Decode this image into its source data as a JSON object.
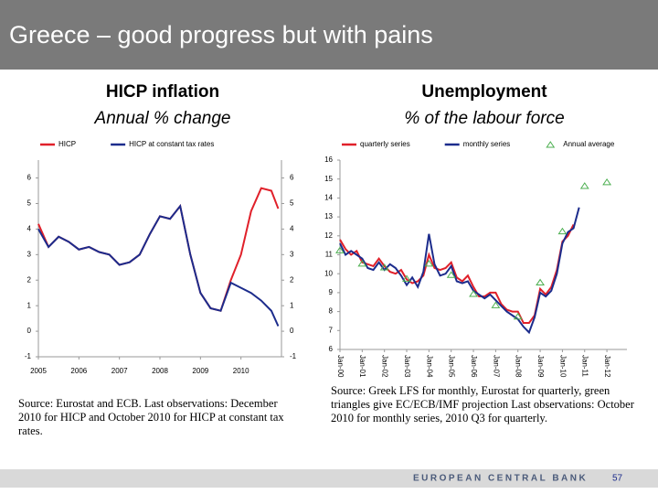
{
  "title": "Greece – good progress but with pains",
  "chart_data": [
    {
      "type": "line",
      "title": "HICP inflation",
      "subtitle": "Annual % change",
      "x": [
        2005,
        2005.25,
        2005.5,
        2005.75,
        2006,
        2006.25,
        2006.5,
        2006.75,
        2007,
        2007.25,
        2007.5,
        2007.75,
        2008,
        2008.25,
        2008.5,
        2008.75,
        2009,
        2009.25,
        2009.5,
        2009.75,
        2010,
        2010.25,
        2010.5,
        2010.75,
        2010.92
      ],
      "xlim": [
        2005,
        2011
      ],
      "xticks": [
        2005,
        2006,
        2007,
        2008,
        2009,
        2010
      ],
      "ylim": [
        -1,
        6.7
      ],
      "yticks": [
        -1,
        0,
        1,
        2,
        3,
        4,
        5,
        6
      ],
      "mirror_y_labels": true,
      "series": [
        {
          "name": "HICP",
          "color": "#e0202a",
          "values": [
            4.2,
            3.3,
            3.7,
            3.5,
            3.2,
            3.3,
            3.1,
            3.0,
            2.6,
            2.7,
            3.0,
            3.8,
            4.5,
            4.4,
            4.9,
            3.0,
            1.5,
            0.9,
            0.8,
            2.0,
            3.0,
            4.7,
            5.6,
            5.5,
            4.8
          ]
        },
        {
          "name": "HICP at constant tax rates",
          "color": "#1c2c8c",
          "values": [
            4.0,
            3.3,
            3.7,
            3.5,
            3.2,
            3.3,
            3.1,
            3.0,
            2.6,
            2.7,
            3.0,
            3.8,
            4.5,
            4.4,
            4.9,
            3.0,
            1.5,
            0.9,
            0.8,
            1.9,
            1.7,
            1.5,
            1.2,
            0.8,
            0.2
          ]
        }
      ],
      "source": "Source: Eurostat and ECB. Last observations: December 2010 for HICP and October 2010 for HICP at constant tax rates."
    },
    {
      "type": "line",
      "title": "Unemployment",
      "subtitle": "% of the labour force",
      "x": [
        2000,
        2000.25,
        2000.5,
        2000.75,
        2001,
        2001.25,
        2001.5,
        2001.75,
        2002,
        2002.25,
        2002.5,
        2002.75,
        2003,
        2003.25,
        2003.5,
        2003.75,
        2004,
        2004.25,
        2004.5,
        2004.75,
        2005,
        2005.25,
        2005.5,
        2005.75,
        2006,
        2006.25,
        2006.5,
        2006.75,
        2007,
        2007.25,
        2007.5,
        2007.75,
        2008,
        2008.25,
        2008.5,
        2008.75,
        2009,
        2009.25,
        2009.5,
        2009.75,
        2010,
        2010.25,
        2010.5,
        2010.75
      ],
      "xlim": [
        2000,
        2012.9
      ],
      "xticks": [
        {
          "value": 2000,
          "label": "Jan-00"
        },
        {
          "value": 2001,
          "label": "Jan-01"
        },
        {
          "value": 2002,
          "label": "Jan-02"
        },
        {
          "value": 2003,
          "label": "Jan-03"
        },
        {
          "value": 2004,
          "label": "Jan-04"
        },
        {
          "value": 2005,
          "label": "Jan-05"
        },
        {
          "value": 2006,
          "label": "Jan-06"
        },
        {
          "value": 2007,
          "label": "Jan-07"
        },
        {
          "value": 2008,
          "label": "Jan-08"
        },
        {
          "value": 2009,
          "label": "Jan-09"
        },
        {
          "value": 2010,
          "label": "Jan-10"
        },
        {
          "value": 2011,
          "label": "Jan-11"
        },
        {
          "value": 2012,
          "label": "Jan-12"
        }
      ],
      "ylim": [
        6,
        16
      ],
      "yticks": [
        6,
        7,
        8,
        9,
        10,
        11,
        12,
        13,
        14,
        15,
        16
      ],
      "mirror_y_labels": false,
      "rotate_x_labels": true,
      "series": [
        {
          "name": "quarterly series",
          "color": "#e0202a",
          "values": [
            11.8,
            11.3,
            11.0,
            11.2,
            10.6,
            10.5,
            10.4,
            10.8,
            10.4,
            10.1,
            10.0,
            10.2,
            9.7,
            9.5,
            9.6,
            9.9,
            11.0,
            10.3,
            10.2,
            10.3,
            10.6,
            9.8,
            9.6,
            9.9,
            9.3,
            8.8,
            8.8,
            9.0,
            9.0,
            8.4,
            8.1,
            8.0,
            8.0,
            7.4,
            7.4,
            7.8,
            9.2,
            8.9,
            9.3,
            10.2,
            11.7,
            12.0,
            12.6,
            null
          ]
        },
        {
          "name": "monthly series",
          "color": "#1c2c8c",
          "values": [
            11.6,
            11.0,
            11.2,
            11.0,
            10.8,
            10.3,
            10.2,
            10.6,
            10.2,
            10.5,
            10.3,
            9.9,
            9.4,
            9.8,
            9.3,
            10.1,
            12.1,
            10.5,
            9.9,
            10.0,
            10.4,
            9.6,
            9.5,
            9.6,
            9.1,
            8.9,
            8.7,
            8.9,
            8.6,
            8.3,
            8.0,
            7.8,
            7.6,
            7.2,
            6.9,
            7.7,
            9.0,
            8.8,
            9.1,
            10.0,
            11.6,
            12.2,
            12.4,
            13.5
          ]
        },
        {
          "name": "Annual average",
          "color": "#4caf50",
          "marker": "triangle",
          "line": false,
          "x": [
            2000,
            2001,
            2002,
            2003,
            2004,
            2005,
            2006,
            2007,
            2008,
            2009,
            2010,
            2011,
            2012
          ],
          "values": [
            11.2,
            10.5,
            10.3,
            9.7,
            10.5,
            9.9,
            8.9,
            8.3,
            7.7,
            9.5,
            12.2,
            14.6,
            14.8
          ]
        }
      ],
      "source": "Source: Greek LFS for monthly, Eurostat for quarterly, green triangles give EC/ECB/IMF projection Last observations: October 2010 for monthly series, 2010 Q3 for quarterly."
    }
  ],
  "footer": {
    "bank": "EUROPEAN CENTRAL BANK",
    "page": "57"
  }
}
